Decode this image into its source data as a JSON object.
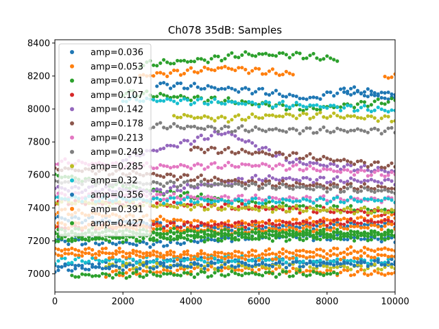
{
  "chart_data": {
    "type": "scatter",
    "title": "Ch078 35dB: Samples",
    "xlabel": "",
    "ylabel": "",
    "xlim": [
      0,
      10000
    ],
    "ylim": [
      6890,
      8420
    ],
    "xticks": [
      0,
      2000,
      4000,
      6000,
      8000,
      10000
    ],
    "yticks": [
      7000,
      7200,
      7400,
      7600,
      7800,
      8000,
      8200,
      8400
    ],
    "legend_position": "upper-left",
    "grid": false,
    "sample_spacing": 100,
    "series": [
      {
        "name": "amp=0.036",
        "color": "#1f77b4",
        "curves": [
          [
            [
              0,
              7200
            ],
            [
              3000,
              7180
            ],
            [
              6000,
              7230
            ],
            [
              10000,
              7210
            ]
          ],
          [
            [
              0,
              7050
            ],
            [
              4000,
              7080
            ],
            [
              10000,
              7060
            ]
          ],
          [
            [
              3000,
              8150
            ],
            [
              6000,
              8110
            ],
            [
              7500,
              8060
            ],
            [
              8400,
              8110
            ],
            [
              10000,
              8060
            ]
          ],
          [
            [
              0,
              7340
            ],
            [
              5000,
              7280
            ],
            [
              10000,
              7300
            ]
          ]
        ]
      },
      {
        "name": "amp=0.053",
        "color": "#ff7f0e",
        "curves": [
          [
            [
              0,
              7150
            ],
            [
              4000,
              7120
            ],
            [
              10000,
              7150
            ]
          ],
          [
            [
              1500,
              7000
            ],
            [
              5000,
              7030
            ],
            [
              10000,
              7000
            ]
          ],
          [
            [
              2500,
              8200
            ],
            [
              5000,
              8250
            ],
            [
              7000,
              8210
            ]
          ],
          [
            [
              9700,
              8200
            ],
            [
              10000,
              8200
            ]
          ],
          [
            [
              0,
              7380
            ],
            [
              5000,
              7300
            ],
            [
              10000,
              7340
            ]
          ]
        ]
      },
      {
        "name": "amp=0.071",
        "color": "#2ca02c",
        "curves": [
          [
            [
              2500,
              8270
            ],
            [
              4500,
              8300
            ],
            [
              5500,
              8330
            ],
            [
              7000,
              8330
            ],
            [
              8300,
              8300
            ]
          ],
          [
            [
              0,
              7220
            ],
            [
              10000,
              7240
            ]
          ],
          [
            [
              0,
              7600
            ],
            [
              3000,
              7500
            ],
            [
              6000,
              7420
            ],
            [
              10000,
              7380
            ]
          ],
          [
            [
              2000,
              8100
            ],
            [
              5000,
              8050
            ],
            [
              7500,
              8000
            ],
            [
              10000,
              8050
            ]
          ]
        ]
      },
      {
        "name": "amp=0.107",
        "color": "#d62728",
        "curves": [
          [
            [
              0,
              7440
            ],
            [
              4000,
              7420
            ],
            [
              7000,
              7390
            ],
            [
              10000,
              7370
            ]
          ],
          [
            [
              0,
              7280
            ],
            [
              5000,
              7300
            ],
            [
              10000,
              7320
            ]
          ]
        ]
      },
      {
        "name": "amp=0.142",
        "color": "#9467bd",
        "curves": [
          [
            [
              0,
              7520
            ],
            [
              3000,
              7500
            ],
            [
              6000,
              7580
            ],
            [
              10000,
              7560
            ]
          ],
          [
            [
              2000,
              7700
            ],
            [
              5000,
              7860
            ],
            [
              7000,
              7680
            ],
            [
              10000,
              7620
            ]
          ]
        ]
      },
      {
        "name": "amp=0.178",
        "color": "#8c564b",
        "curves": [
          [
            [
              0,
              7640
            ],
            [
              3000,
              7600
            ],
            [
              6000,
              7550
            ],
            [
              10000,
              7520
            ]
          ],
          [
            [
              4000,
              7760
            ],
            [
              7000,
              7720
            ],
            [
              10000,
              7650
            ]
          ]
        ]
      },
      {
        "name": "amp=0.213",
        "color": "#e377c2",
        "curves": [
          [
            [
              0,
              7680
            ],
            [
              3000,
              7650
            ],
            [
              6000,
              7660
            ],
            [
              10000,
              7600
            ]
          ],
          [
            [
              0,
              7480
            ],
            [
              5000,
              7460
            ],
            [
              10000,
              7450
            ]
          ]
        ]
      },
      {
        "name": "amp=0.249",
        "color": "#7f7f7f",
        "curves": [
          [
            [
              2800,
              7900
            ],
            [
              5000,
              7880
            ],
            [
              7000,
              7870
            ],
            [
              10000,
              7870
            ]
          ],
          [
            [
              0,
              7560
            ],
            [
              5000,
              7540
            ],
            [
              10000,
              7500
            ]
          ]
        ]
      },
      {
        "name": "amp=0.285",
        "color": "#bcbd22",
        "curves": [
          [
            [
              3500,
              7960
            ],
            [
              5000,
              7940
            ],
            [
              6500,
              7960
            ],
            [
              8000,
              7960
            ],
            [
              10000,
              7940
            ]
          ],
          [
            [
              0,
              7440
            ],
            [
              5000,
              7400
            ],
            [
              10000,
              7380
            ]
          ],
          [
            [
              1500,
              7050
            ],
            [
              10000,
              7040
            ]
          ]
        ]
      },
      {
        "name": "amp=0.32",
        "color": "#17becf",
        "curves": [
          [
            [
              2000,
              8060
            ],
            [
              5000,
              8040
            ],
            [
              7500,
              8020
            ],
            [
              10000,
              7990
            ]
          ],
          [
            [
              0,
              7080
            ],
            [
              5000,
              7090
            ],
            [
              10000,
              7080
            ]
          ],
          [
            [
              0,
              7460
            ],
            [
              5000,
              7440
            ],
            [
              10000,
              7450
            ]
          ]
        ]
      },
      {
        "name": "amp=0.356",
        "color": "#1f77b4",
        "curves": [
          [
            [
              0,
              7030
            ],
            [
              4000,
              7050
            ],
            [
              8000,
              7060
            ],
            [
              10000,
              7070
            ]
          ],
          [
            [
              8500,
              8120
            ],
            [
              10000,
              8090
            ]
          ]
        ]
      },
      {
        "name": "amp=0.391",
        "color": "#ff7f0e",
        "curves": [
          [
            [
              0,
              7300
            ],
            [
              5000,
              7260
            ],
            [
              10000,
              7290
            ]
          ],
          [
            [
              0,
              7120
            ],
            [
              5000,
              7100
            ],
            [
              10000,
              7110
            ]
          ]
        ]
      },
      {
        "name": "amp=0.427",
        "color": "#2ca02c",
        "curves": [
          [
            [
              0,
              7240
            ],
            [
              10000,
              7240
            ]
          ],
          [
            [
              0,
              7210
            ],
            [
              10000,
              7220
            ]
          ],
          [
            [
              0,
              7260
            ],
            [
              10000,
              7250
            ]
          ],
          [
            [
              500,
              6990
            ],
            [
              5000,
              7000
            ],
            [
              8300,
              7000
            ]
          ]
        ]
      }
    ]
  }
}
